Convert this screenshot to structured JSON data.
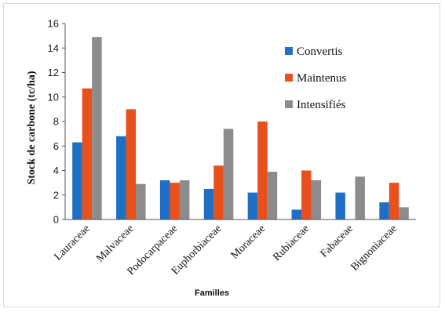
{
  "chart_data": {
    "type": "bar",
    "title": "",
    "xlabel": "Familles",
    "ylabel": "Stock  de carbone (tc/ha)",
    "ylim": [
      0,
      16
    ],
    "yticks": [
      "0",
      "2",
      "4",
      "6",
      "8",
      "10",
      "12",
      "14",
      "16"
    ],
    "categories": [
      "Lauraceae",
      "Malvaceae",
      "Podocarpaceae",
      "Euphorbiaceae",
      "Moraceae",
      "Rubiaceae",
      "Fabaceae",
      "Bignoniaceae"
    ],
    "series": [
      {
        "name": "Convertis",
        "color": "#1f6fc5",
        "values": [
          6.3,
          6.8,
          3.2,
          2.5,
          2.2,
          0.8,
          2.2,
          1.4
        ]
      },
      {
        "name": "Maintenus",
        "color": "#e8501c",
        "values": [
          10.7,
          9.0,
          3.0,
          4.4,
          8.0,
          4.0,
          0.0,
          3.0
        ]
      },
      {
        "name": "Intensifiés",
        "color": "#8c8c8c",
        "values": [
          14.9,
          2.9,
          3.2,
          7.4,
          3.9,
          3.2,
          3.5,
          1.0
        ]
      }
    ],
    "grid": false,
    "legend_position": "top-right"
  }
}
